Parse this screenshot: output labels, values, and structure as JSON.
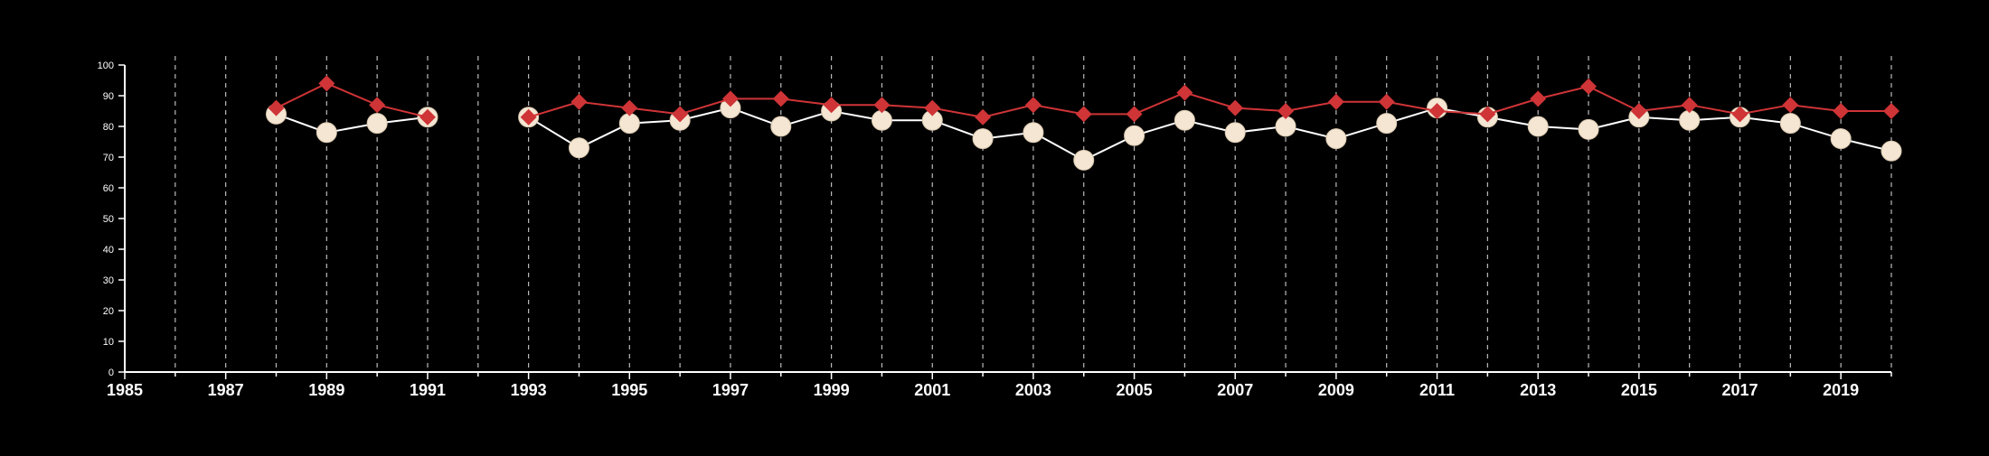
{
  "colors": {
    "background": "#000000",
    "axis": "#ffffff",
    "grid": "#bbbbbb",
    "series_1": "#cf3437",
    "series_2_line": "#ffffff",
    "series_2_marker": "#f4e6d2"
  },
  "chart_data": {
    "type": "line",
    "title": "",
    "xlabel": "",
    "ylabel": "",
    "xlim": [
      1985,
      2020
    ],
    "ylim": [
      0,
      100
    ],
    "x_ticks": [
      1985,
      1987,
      1989,
      1991,
      1993,
      1995,
      1997,
      1999,
      2001,
      2003,
      2005,
      2007,
      2009,
      2011,
      2013,
      2015,
      2017,
      2019
    ],
    "y_ticks": [
      0,
      10,
      20,
      30,
      40,
      50,
      60,
      70,
      80,
      90,
      100
    ],
    "grid": "vertical dashed lines at each year",
    "legend": "none",
    "series": [
      {
        "marker": "diamond",
        "color": "#cf3437",
        "x": [
          1988,
          1989,
          1990,
          1991,
          1993,
          1994,
          1995,
          1996,
          1997,
          1998,
          1999,
          2000,
          2001,
          2002,
          2003,
          2004,
          2005,
          2006,
          2007,
          2008,
          2009,
          2010,
          2011,
          2012,
          2013,
          2014,
          2015,
          2016,
          2017,
          2018,
          2019,
          2020
        ],
        "values": [
          86,
          94,
          87,
          83,
          83,
          88,
          86,
          84,
          89,
          89,
          87,
          87,
          86,
          83,
          87,
          84,
          84,
          91,
          86,
          85,
          88,
          88,
          85,
          84,
          89,
          93,
          85,
          87,
          84,
          87,
          85,
          85
        ]
      },
      {
        "marker": "circle",
        "color": "#f4e6d2",
        "x": [
          1988,
          1989,
          1990,
          1991,
          1993,
          1994,
          1995,
          1996,
          1997,
          1998,
          1999,
          2000,
          2001,
          2002,
          2003,
          2004,
          2005,
          2006,
          2007,
          2008,
          2009,
          2010,
          2011,
          2012,
          2013,
          2014,
          2015,
          2016,
          2017,
          2018,
          2019,
          2020
        ],
        "values": [
          84,
          78,
          81,
          83,
          83,
          73,
          81,
          82,
          86,
          80,
          85,
          82,
          82,
          76,
          78,
          69,
          77,
          82,
          78,
          80,
          76,
          81,
          86,
          83,
          80,
          79,
          83,
          82,
          83,
          81,
          76,
          72
        ]
      }
    ]
  }
}
